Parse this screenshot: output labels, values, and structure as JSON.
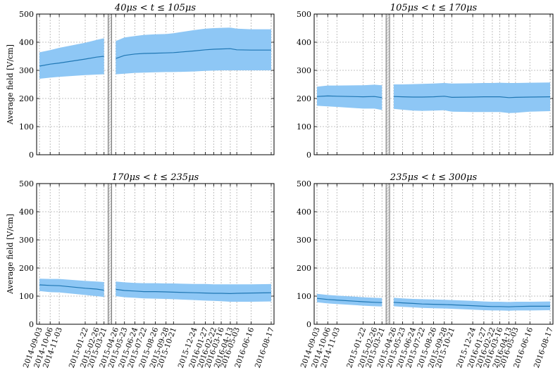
{
  "chart_data": [
    {
      "type": "area",
      "title": "40μs < t ≤ 105μs",
      "ylabel": "Average field [V/cm]",
      "xlabel": "",
      "ylim": [
        0,
        500
      ],
      "yticks": [
        0,
        100,
        200,
        300,
        400,
        500
      ],
      "grid": true,
      "color": "#1f77b4",
      "band_color": "#8ec7f5",
      "show_xtick_labels": false,
      "break": {
        "after": "2015-03-21",
        "before": "2015-04-26"
      },
      "x": [
        "2014-09-03",
        "2014-10-06",
        "2014-11-03",
        "2015-01-22",
        "2015-02-26",
        "2015-03-21",
        "2015-04-26",
        "2015-05-23",
        "2015-06-24",
        "2015-07-22",
        "2015-08-26",
        "2015-09-28",
        "2015-10-21",
        "2015-12-24",
        "2016-01-27",
        "2016-02-22",
        "2016-03-16",
        "2016-04-13",
        "2016-05-03",
        "2016-06-16",
        "2016-08-17"
      ],
      "series": [
        {
          "role": "mean",
          "values": [
            315,
            322,
            326,
            340,
            347,
            350,
            342,
            353,
            358,
            360,
            361,
            362,
            363,
            369,
            373,
            375,
            376,
            377,
            373,
            372,
            372
          ]
        },
        {
          "role": "upper",
          "values": [
            364,
            372,
            380,
            398,
            408,
            414,
            404,
            417,
            422,
            426,
            428,
            429,
            432,
            443,
            448,
            450,
            451,
            452,
            448,
            446,
            446
          ]
        },
        {
          "role": "lower",
          "values": [
            270,
            274,
            277,
            283,
            285,
            286,
            286,
            288,
            291,
            292,
            293,
            294,
            294,
            296,
            298,
            299,
            300,
            300,
            300,
            300,
            300
          ]
        }
      ]
    },
    {
      "type": "area",
      "title": "105μs < t ≤ 170μs",
      "ylabel": "",
      "xlabel": "",
      "ylim": [
        0,
        500
      ],
      "yticks": [
        0,
        100,
        200,
        300,
        400,
        500
      ],
      "grid": true,
      "color": "#1f77b4",
      "band_color": "#8ec7f5",
      "show_xtick_labels": false,
      "break": {
        "after": "2015-03-21",
        "before": "2015-04-26"
      },
      "x": [
        "2014-09-03",
        "2014-10-06",
        "2014-11-03",
        "2015-01-22",
        "2015-02-26",
        "2015-03-21",
        "2015-04-26",
        "2015-05-23",
        "2015-06-24",
        "2015-07-22",
        "2015-08-26",
        "2015-09-28",
        "2015-10-21",
        "2015-12-24",
        "2016-01-27",
        "2016-02-22",
        "2016-03-16",
        "2016-04-13",
        "2016-05-03",
        "2016-06-16",
        "2016-08-17"
      ],
      "series": [
        {
          "role": "mean",
          "values": [
            207,
            209,
            208,
            206,
            207,
            203,
            207,
            206,
            205,
            205,
            206,
            208,
            204,
            205,
            206,
            206,
            206,
            203,
            204,
            205,
            206
          ]
        },
        {
          "role": "upper",
          "values": [
            242,
            246,
            246,
            247,
            249,
            247,
            250,
            250,
            251,
            252,
            253,
            255,
            253,
            254,
            255,
            255,
            256,
            255,
            255,
            256,
            257
          ]
        },
        {
          "role": "lower",
          "values": [
            174,
            172,
            170,
            164,
            164,
            159,
            163,
            160,
            157,
            156,
            157,
            158,
            153,
            152,
            152,
            152,
            152,
            148,
            149,
            153,
            155
          ]
        }
      ]
    },
    {
      "type": "area",
      "title": "170μs < t ≤ 235μs",
      "ylabel": "Average field [V/cm]",
      "xlabel": "",
      "ylim": [
        0,
        500
      ],
      "yticks": [
        0,
        100,
        200,
        300,
        400,
        500
      ],
      "grid": true,
      "color": "#1f77b4",
      "band_color": "#8ec7f5",
      "show_xtick_labels": true,
      "break": {
        "after": "2015-03-21",
        "before": "2015-04-26"
      },
      "x": [
        "2014-09-03",
        "2014-10-06",
        "2014-11-03",
        "2015-01-22",
        "2015-02-26",
        "2015-03-21",
        "2015-04-26",
        "2015-05-23",
        "2015-06-24",
        "2015-07-22",
        "2015-08-26",
        "2015-09-28",
        "2015-10-21",
        "2015-12-24",
        "2016-01-27",
        "2016-02-22",
        "2016-03-16",
        "2016-04-13",
        "2016-05-03",
        "2016-06-16",
        "2016-08-17"
      ],
      "series": [
        {
          "role": "mean",
          "values": [
            140,
            138,
            137,
            128,
            125,
            121,
            124,
            120,
            118,
            116,
            116,
            115,
            114,
            112,
            111,
            110,
            110,
            109,
            110,
            111,
            112
          ]
        },
        {
          "role": "upper",
          "values": [
            162,
            161,
            161,
            154,
            152,
            150,
            152,
            149,
            147,
            146,
            146,
            145,
            145,
            143,
            143,
            142,
            142,
            142,
            142,
            142,
            143
          ]
        },
        {
          "role": "lower",
          "values": [
            118,
            114,
            113,
            104,
            100,
            97,
            100,
            96,
            94,
            92,
            91,
            90,
            89,
            86,
            84,
            83,
            82,
            80,
            80,
            80,
            81
          ]
        }
      ]
    },
    {
      "type": "area",
      "title": "235μs < t ≤ 300μs",
      "ylabel": "",
      "xlabel": "",
      "ylim": [
        0,
        500
      ],
      "yticks": [
        0,
        100,
        200,
        300,
        400,
        500
      ],
      "grid": true,
      "color": "#1f77b4",
      "band_color": "#8ec7f5",
      "show_xtick_labels": true,
      "break": {
        "after": "2015-03-21",
        "before": "2015-04-26"
      },
      "x": [
        "2014-09-03",
        "2014-10-06",
        "2014-11-03",
        "2015-01-22",
        "2015-02-26",
        "2015-03-21",
        "2015-04-26",
        "2015-05-23",
        "2015-06-24",
        "2015-07-22",
        "2015-08-26",
        "2015-09-28",
        "2015-10-21",
        "2015-12-24",
        "2016-01-27",
        "2016-02-22",
        "2016-03-16",
        "2016-04-13",
        "2016-05-03",
        "2016-06-16",
        "2016-08-17"
      ],
      "series": [
        {
          "role": "mean",
          "values": [
            92,
            88,
            86,
            80,
            78,
            77,
            78,
            76,
            74,
            72,
            71,
            70,
            69,
            66,
            64,
            63,
            63,
            62,
            63,
            64,
            64
          ]
        },
        {
          "role": "upper",
          "values": [
            108,
            104,
            102,
            96,
            94,
            93,
            94,
            92,
            90,
            89,
            88,
            87,
            86,
            83,
            81,
            80,
            80,
            79,
            80,
            80,
            81
          ]
        },
        {
          "role": "lower",
          "values": [
            78,
            74,
            72,
            66,
            64,
            63,
            64,
            62,
            60,
            58,
            57,
            56,
            55,
            52,
            50,
            49,
            49,
            48,
            49,
            49,
            50
          ]
        }
      ]
    }
  ]
}
